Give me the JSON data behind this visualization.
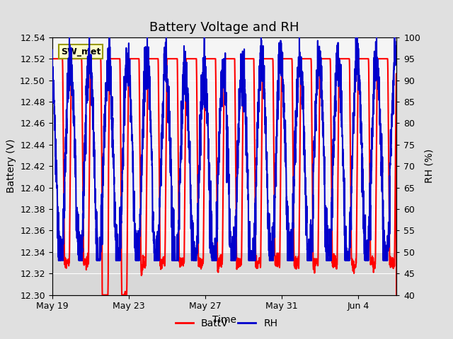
{
  "title": "Battery Voltage and RH",
  "xlabel": "Time",
  "ylabel_left": "Battery (V)",
  "ylabel_right": "RH (%)",
  "ylim_left": [
    12.3,
    12.54
  ],
  "ylim_right": [
    40,
    100
  ],
  "yticks_left": [
    12.3,
    12.32,
    12.34,
    12.36,
    12.38,
    12.4,
    12.42,
    12.44,
    12.46,
    12.48,
    12.5,
    12.52,
    12.54
  ],
  "yticks_right": [
    40,
    45,
    50,
    55,
    60,
    65,
    70,
    75,
    80,
    85,
    90,
    95,
    100
  ],
  "xtick_positions": [
    0,
    4,
    8,
    12,
    16
  ],
  "xtick_labels": [
    "May 19",
    "May 23",
    "May 27",
    "May 31",
    "Jun 4"
  ],
  "legend_label_batt": "BattV",
  "legend_label_rh": "RH",
  "color_batt": "#FF0000",
  "color_rh": "#0000CC",
  "fig_bg_color": "#E0E0E0",
  "plot_bg_color": "#F5F5F5",
  "band_lo": 12.3,
  "band_hi": 12.34,
  "band_color": "#D8D8D8",
  "label_box_facecolor": "#FFFFCC",
  "label_box_edgecolor": "#999900",
  "label_text": "SW_met",
  "title_fontsize": 13,
  "axis_label_fontsize": 10,
  "tick_fontsize": 9,
  "line_width": 1.5,
  "n_days": 18,
  "n_per_day": 144,
  "xlim_max": 18
}
